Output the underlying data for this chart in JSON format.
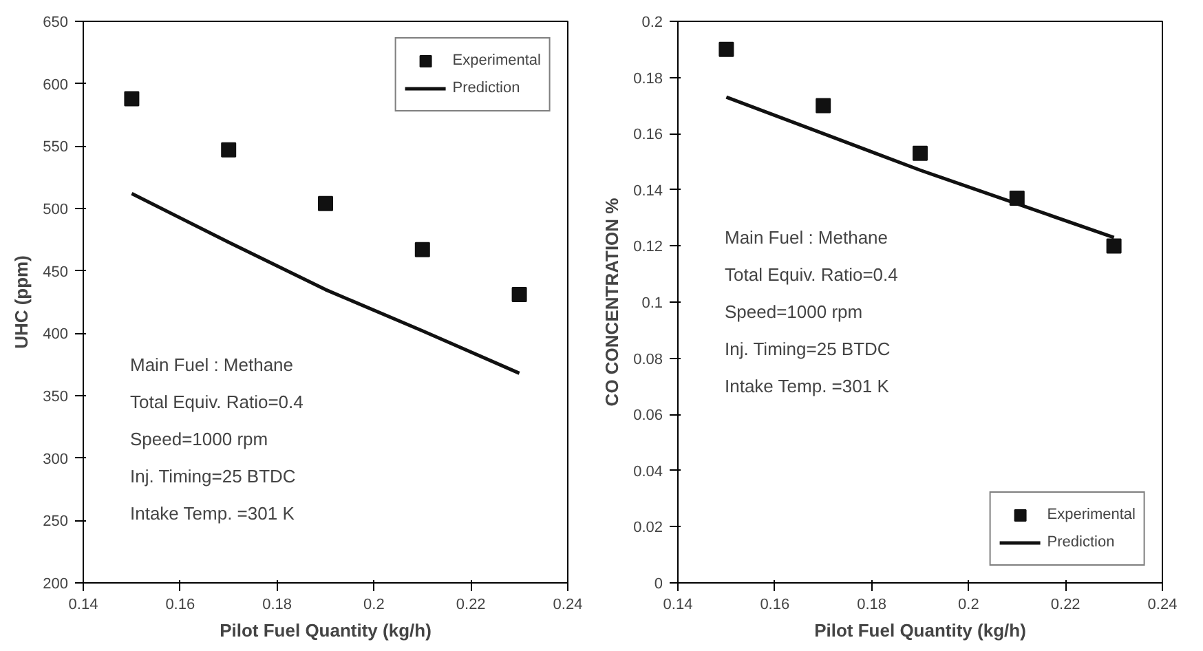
{
  "chart_data": [
    {
      "type": "scatter",
      "xlabel": "Pilot Fuel Quantity (kg/h)",
      "ylabel": "UHC (ppm)",
      "x": [
        0.15,
        0.17,
        0.19,
        0.21,
        0.23
      ],
      "series": [
        {
          "name": "Experimental",
          "color": "#111111",
          "marker": "square",
          "values": [
            588,
            547,
            504,
            467,
            431
          ]
        },
        {
          "name": "Prediction",
          "type": "line",
          "color": "#111111",
          "line_style": "solid",
          "values": [
            512,
            473,
            435,
            402,
            368
          ]
        }
      ],
      "xlim": [
        0.14,
        0.24
      ],
      "xticks": [
        0.14,
        0.16,
        0.18,
        0.2,
        0.22,
        0.24
      ],
      "ylim": [
        200,
        650
      ],
      "yticks": [
        200,
        250,
        300,
        350,
        400,
        450,
        500,
        550,
        600,
        650
      ],
      "grid": false,
      "legend": "top right",
      "annotations": [
        "Main Fuel : Methane",
        "Total Equiv. Ratio=0.4",
        "Speed=1000 rpm",
        "Inj. Timing=25 BTDC",
        "Intake Temp. =301 K"
      ]
    },
    {
      "type": "scatter",
      "xlabel": "Pilot Fuel Quantity (kg/h)",
      "ylabel": "CO CONCENTRATION %",
      "x": [
        0.15,
        0.17,
        0.19,
        0.21,
        0.23
      ],
      "series": [
        {
          "name": "Experimental",
          "color": "#111111",
          "marker": "square",
          "values": [
            0.19,
            0.17,
            0.153,
            0.137,
            0.12
          ]
        },
        {
          "name": "Prediction",
          "type": "line",
          "color": "#111111",
          "line_style": "solid",
          "values": [
            0.173,
            0.16,
            0.147,
            0.135,
            0.123
          ]
        }
      ],
      "xlim": [
        0.14,
        0.24
      ],
      "xticks": [
        0.14,
        0.16,
        0.18,
        0.2,
        0.22,
        0.24
      ],
      "ylim": [
        0,
        0.2
      ],
      "yticks": [
        0,
        0.02,
        0.04,
        0.06,
        0.08,
        0.1,
        0.12,
        0.14,
        0.16,
        0.18,
        0.2
      ],
      "grid": false,
      "legend": "bottom right",
      "annotations": [
        "Main Fuel : Methane",
        "Total Equiv. Ratio=0.4",
        "Speed=1000 rpm",
        "Inj. Timing=25 BTDC",
        "Intake Temp. =301 K"
      ]
    }
  ]
}
